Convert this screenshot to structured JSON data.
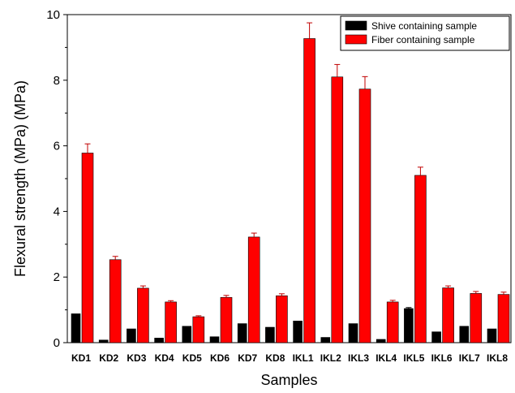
{
  "chart_data": {
    "type": "bar",
    "title": "",
    "xlabel": "Samples",
    "ylabel": "Flexural strength (MPa) (MPa)",
    "ylim": [
      0,
      10
    ],
    "yticks": [
      "0",
      "2",
      "4",
      "6",
      "8",
      "10"
    ],
    "grid": false,
    "legend_position": "top-right",
    "categories": [
      "KD1",
      "KD2",
      "KD3",
      "KD4",
      "KD5",
      "KD6",
      "KD7",
      "KD8",
      "IKL1",
      "IKL2",
      "IKL3",
      "IKL4",
      "IKL5",
      "IKL6",
      "IKL7",
      "IKL8"
    ],
    "series": [
      {
        "name": "Shive containing sample",
        "color": "#000000",
        "values": [
          0.88,
          0.08,
          0.42,
          0.14,
          0.5,
          0.18,
          0.58,
          0.47,
          0.66,
          0.16,
          0.58,
          0.1,
          1.04,
          0.33,
          0.5,
          0.42
        ],
        "errors": [
          0,
          0,
          0,
          0,
          0,
          0,
          0,
          0,
          0,
          0,
          0,
          0,
          0.03,
          0,
          0,
          0
        ]
      },
      {
        "name": "Fiber containing sample",
        "color": "#ff0000",
        "values": [
          5.78,
          2.53,
          1.66,
          1.24,
          0.79,
          1.38,
          3.22,
          1.43,
          9.27,
          8.1,
          7.73,
          1.24,
          5.1,
          1.67,
          1.5,
          1.47
        ],
        "errors": [
          0.28,
          0.1,
          0.07,
          0.04,
          0.03,
          0.06,
          0.12,
          0.06,
          0.48,
          0.38,
          0.38,
          0.05,
          0.25,
          0.06,
          0.06,
          0.07
        ]
      }
    ]
  }
}
